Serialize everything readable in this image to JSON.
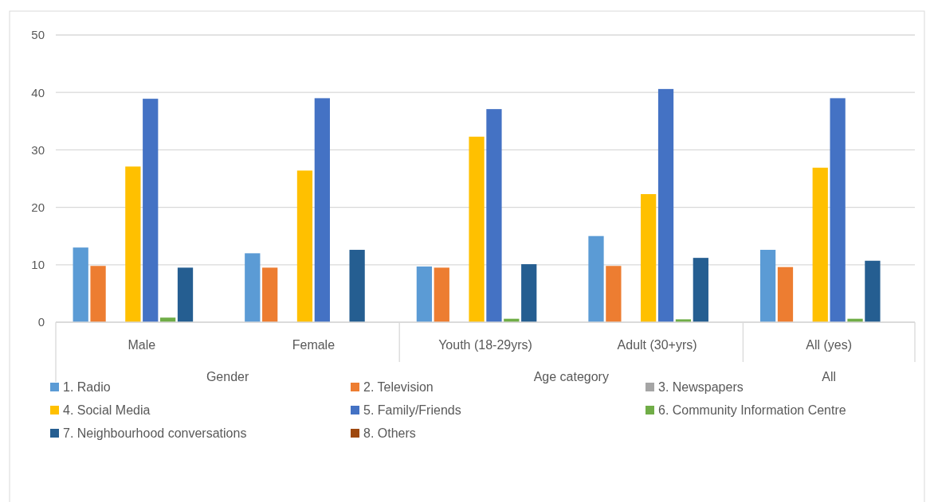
{
  "chart_data": {
    "type": "bar",
    "categories": [
      "Male",
      "Female",
      "Youth (18-29yrs)",
      "Adult (30+yrs)",
      "All (yes)"
    ],
    "annotations": [
      "Gender",
      "Age category",
      "All"
    ],
    "series": [
      {
        "name": "1. Radio",
        "color": "#5b9bd5",
        "values": [
          13.0,
          12.0,
          9.7,
          15.0,
          12.6
        ]
      },
      {
        "name": "2. Television",
        "color": "#ed7d31",
        "values": [
          9.8,
          9.5,
          9.5,
          9.8,
          9.6
        ]
      },
      {
        "name": "3. Newspapers",
        "color": "#a5a5a5",
        "values": [
          null,
          0,
          null,
          null,
          null
        ]
      },
      {
        "name": "4. Social Media",
        "color": "#ffc000",
        "values": [
          27.1,
          26.4,
          32.3,
          22.3,
          26.9
        ]
      },
      {
        "name": "5. Family/Friends",
        "color": "#4472c4",
        "values": [
          38.9,
          39.0,
          37.1,
          40.6,
          39.0
        ]
      },
      {
        "name": "6. Community Information Centre",
        "color": "#70ad47",
        "values": [
          0.8,
          null,
          0.6,
          0.5,
          0.6
        ]
      },
      {
        "name": "7. Neighbourhood conversations",
        "color": "#255e91",
        "values": [
          9.5,
          12.6,
          10.1,
          11.2,
          10.7
        ]
      },
      {
        "name": "8. Others",
        "color": "#9e480e",
        "values": [
          0,
          0,
          0,
          0,
          0
        ]
      }
    ],
    "ylim": [
      0,
      50
    ],
    "yticks": [
      0,
      10,
      20,
      30,
      40,
      50
    ],
    "grid": "y",
    "legend": "bottom"
  }
}
